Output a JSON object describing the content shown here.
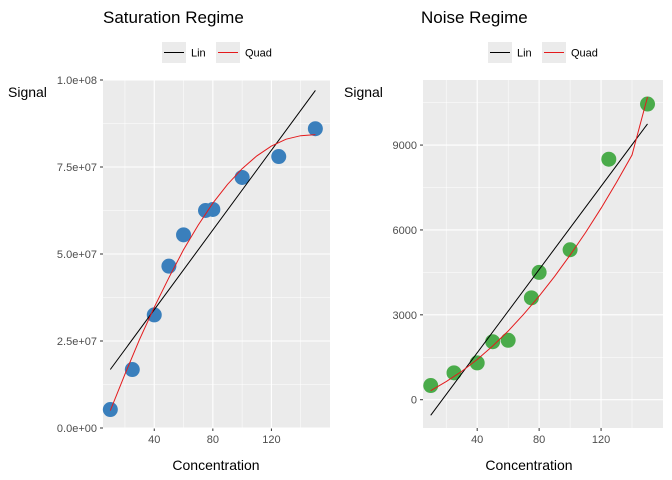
{
  "chart_data": [
    {
      "type": "scatter",
      "title": "Saturation Regime",
      "xlabel": "Concentration",
      "ylabel": "Signal",
      "xlim": [
        5,
        160
      ],
      "ylim": [
        0,
        100000000
      ],
      "xticks": [
        40,
        80,
        120
      ],
      "xtick_labels": [
        "40",
        "80",
        "120"
      ],
      "yticks": [
        0,
        25000000,
        50000000,
        75000000,
        100000000
      ],
      "ytick_labels": [
        "0.0e+00",
        "2.5e+07",
        "5.0e+07",
        "7.5e+07",
        "1.0e+08"
      ],
      "grid": true,
      "legend_position": "top",
      "point_color": "#3a7fbc",
      "points": [
        {
          "x": 10,
          "y": 5300000
        },
        {
          "x": 25,
          "y": 16800000
        },
        {
          "x": 40,
          "y": 32500000
        },
        {
          "x": 50,
          "y": 46500000
        },
        {
          "x": 60,
          "y": 55500000
        },
        {
          "x": 75,
          "y": 62500000
        },
        {
          "x": 80,
          "y": 62800000
        },
        {
          "x": 100,
          "y": 72000000
        },
        {
          "x": 125,
          "y": 78000000
        },
        {
          "x": 150,
          "y": 86000000
        }
      ],
      "series": [
        {
          "name": "Lin",
          "color": "#000000",
          "x": [
            10,
            150
          ],
          "y": [
            16800000,
            97000000
          ]
        },
        {
          "name": "Quad",
          "color": "#e41a1c",
          "x": [
            10,
            20,
            30,
            40,
            50,
            60,
            70,
            80,
            90,
            100,
            110,
            120,
            130,
            140,
            150
          ],
          "y": [
            5000000,
            15500000,
            25500000,
            34700000,
            43200000,
            51200000,
            58300000,
            64600000,
            70000000,
            74500000,
            78200000,
            81000000,
            83000000,
            84000000,
            84300000
          ]
        }
      ]
    },
    {
      "type": "scatter",
      "title": "Noise Regime",
      "xlabel": "Concentration",
      "ylabel": "Signal",
      "xlim": [
        5,
        160
      ],
      "ylim": [
        -1000,
        11300
      ],
      "xticks": [
        40,
        80,
        120
      ],
      "xtick_labels": [
        "40",
        "80",
        "120"
      ],
      "yticks": [
        0,
        3000,
        6000,
        9000
      ],
      "ytick_labels": [
        "0",
        "3000",
        "6000",
        "9000"
      ],
      "grid": true,
      "legend_position": "top",
      "point_color": "#4aab4a",
      "points": [
        {
          "x": 10,
          "y": 500
        },
        {
          "x": 25,
          "y": 950
        },
        {
          "x": 40,
          "y": 1300
        },
        {
          "x": 50,
          "y": 2050
        },
        {
          "x": 60,
          "y": 2100
        },
        {
          "x": 75,
          "y": 3600
        },
        {
          "x": 80,
          "y": 4500
        },
        {
          "x": 100,
          "y": 5300
        },
        {
          "x": 125,
          "y": 8500
        },
        {
          "x": 150,
          "y": 10450
        }
      ],
      "series": [
        {
          "name": "Lin",
          "color": "#000000",
          "x": [
            10,
            150
          ],
          "y": [
            -550,
            9750
          ]
        },
        {
          "name": "Quad",
          "color": "#e41a1c",
          "x": [
            10,
            20,
            30,
            40,
            50,
            60,
            70,
            80,
            90,
            100,
            110,
            120,
            130,
            140,
            150
          ],
          "y": [
            320,
            640,
            1000,
            1420,
            1900,
            2430,
            3020,
            3660,
            4360,
            5110,
            5910,
            6770,
            7680,
            8650,
            10700
          ]
        }
      ]
    }
  ]
}
